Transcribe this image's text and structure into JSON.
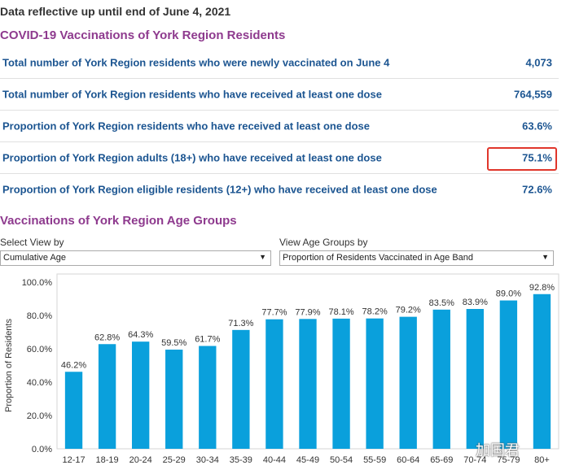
{
  "updated_note": "Data reflective up until end of June 4, 2021",
  "vaccinations_title": "COVID-19 Vaccinations of York Region Residents",
  "stats": [
    {
      "label": "Total number of York Region residents who were newly vaccinated on June 4",
      "value": "4,073"
    },
    {
      "label": "Total number of York Region residents who have received at least one dose",
      "value": "764,559"
    },
    {
      "label": "Proportion of York Region residents who have received at least one dose",
      "value": "63.6%"
    },
    {
      "label": "Proportion of York Region adults (18+) who have received at least one dose",
      "value": "75.1%"
    },
    {
      "label": "Proportion of York Region eligible residents (12+) who have received at least one dose",
      "value": "72.6%"
    }
  ],
  "age_groups_title": "Vaccinations of York Region Age Groups",
  "controls": {
    "select_view_label": "Select View by",
    "select_view_value": "Cumulative Age",
    "view_age_label": "View Age Groups by",
    "view_age_value": "Proportion of Residents Vaccinated in Age Band"
  },
  "watermark": "加国君",
  "colors": {
    "bar": "#0aa0dc",
    "title": "#8e3a8e",
    "stat_text": "#1c5591",
    "highlight": "#e0362b"
  },
  "chart_data": {
    "type": "bar",
    "ylabel": "Proportion of Residents",
    "xlabel": "",
    "ylim": [
      0,
      100
    ],
    "y_ticks": [
      "0.0%",
      "20.0%",
      "40.0%",
      "60.0%",
      "80.0%",
      "100.0%"
    ],
    "categories": [
      "12-17",
      "18-19",
      "20-24",
      "25-29",
      "30-34",
      "35-39",
      "40-44",
      "45-49",
      "50-54",
      "55-59",
      "60-64",
      "65-69",
      "70-74",
      "75-79",
      "80+"
    ],
    "values": [
      46.2,
      62.8,
      64.3,
      59.5,
      61.7,
      71.3,
      77.7,
      77.9,
      78.1,
      78.2,
      79.2,
      83.5,
      83.9,
      89.0,
      92.8
    ],
    "value_labels": [
      "46.2%",
      "62.8%",
      "64.3%",
      "59.5%",
      "61.7%",
      "71.3%",
      "77.7%",
      "77.9%",
      "78.1%",
      "78.2%",
      "79.2%",
      "83.5%",
      "83.9%",
      "89.0%",
      "92.8%"
    ],
    "grid": false,
    "legend": "none"
  }
}
